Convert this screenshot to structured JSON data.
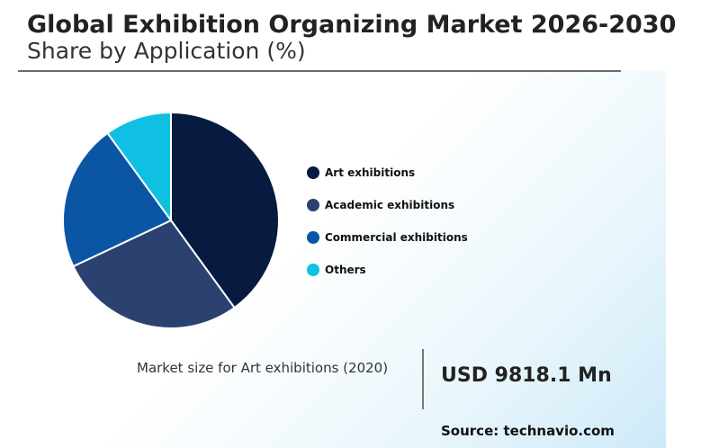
{
  "header": {
    "title": "Global Exhibition Organizing Market 2026-2030",
    "subtitle": "Share by Application (%)"
  },
  "chart_data": {
    "type": "pie",
    "categories": [
      "Art exhibitions",
      "Academic exhibitions",
      "Commercial exhibitions",
      "Others"
    ],
    "values": [
      40,
      28,
      22,
      10
    ],
    "colors": [
      "#071b41",
      "#2b4170",
      "#0a56a5",
      "#0fc0e3"
    ],
    "legend_position": "right"
  },
  "market_size": {
    "label": "Market size for Art exhibitions (2020)",
    "value": "USD 9818.1 Mn"
  },
  "source": "Source: technavio.com"
}
